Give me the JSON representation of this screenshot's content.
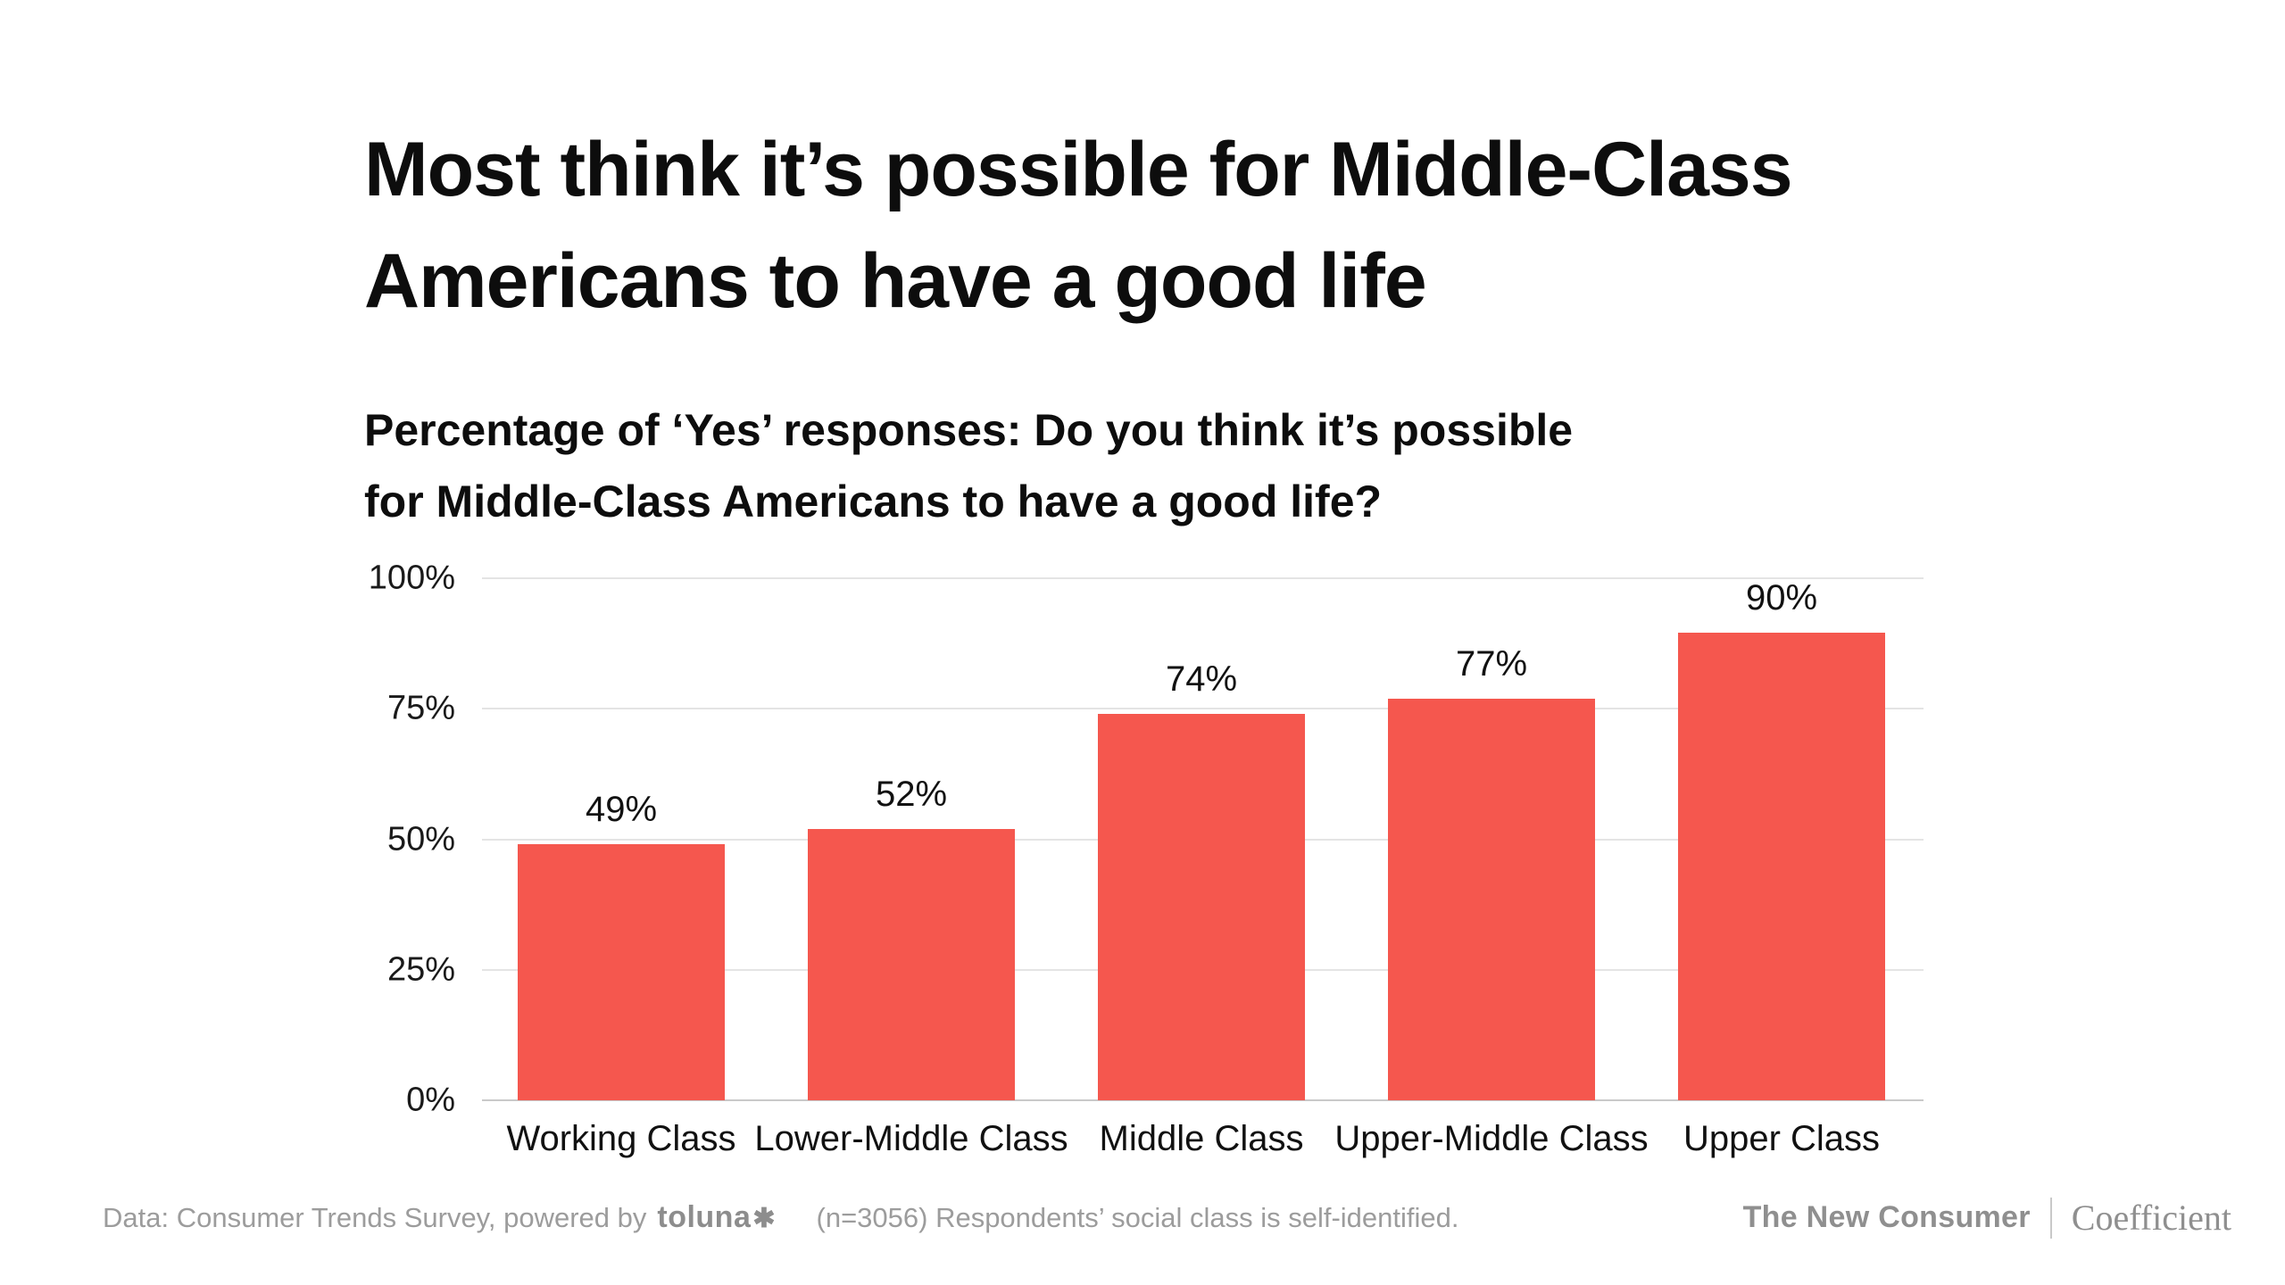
{
  "header": {
    "title_lines": [
      "Most think it’s possible for Middle-Class",
      "Americans to have a good life"
    ],
    "subtitle_lines": [
      "Percentage of ‘Yes’ responses: Do you think it’s possible",
      "for Middle-Class Americans to have a good life?"
    ]
  },
  "chart_data": {
    "type": "bar",
    "title": "Most think it’s possible for Middle-Class Americans to have a good life",
    "subtitle": "Percentage of ‘Yes’ responses: Do you think it’s possible for Middle-Class Americans to have a good life?",
    "categories": [
      "Working Class",
      "Lower-Middle Class",
      "Middle Class",
      "Upper-Middle Class",
      "Upper Class"
    ],
    "values": [
      49,
      52,
      74,
      77,
      90
    ],
    "value_labels": [
      "49%",
      "52%",
      "74%",
      "77%",
      "90%"
    ],
    "y_ticks": [
      "0%",
      "25%",
      "50%",
      "75%",
      "100%"
    ],
    "ylim": [
      0,
      100
    ],
    "xlabel": "",
    "ylabel": "",
    "grid": true,
    "legend": false,
    "bar_color": "#F5574E",
    "gridline_color": "#e4e4e4",
    "axis_color": "#c9c9c9"
  },
  "footer": {
    "source_prefix": "Data: Consumer Trends Survey, powered by",
    "toluna_wordmark": "toluna",
    "toluna_star": "✱",
    "note": "(n=3056) Respondents’ social class is self-identified.",
    "brand_primary": "The New Consumer",
    "brand_secondary": "Coefficient"
  }
}
